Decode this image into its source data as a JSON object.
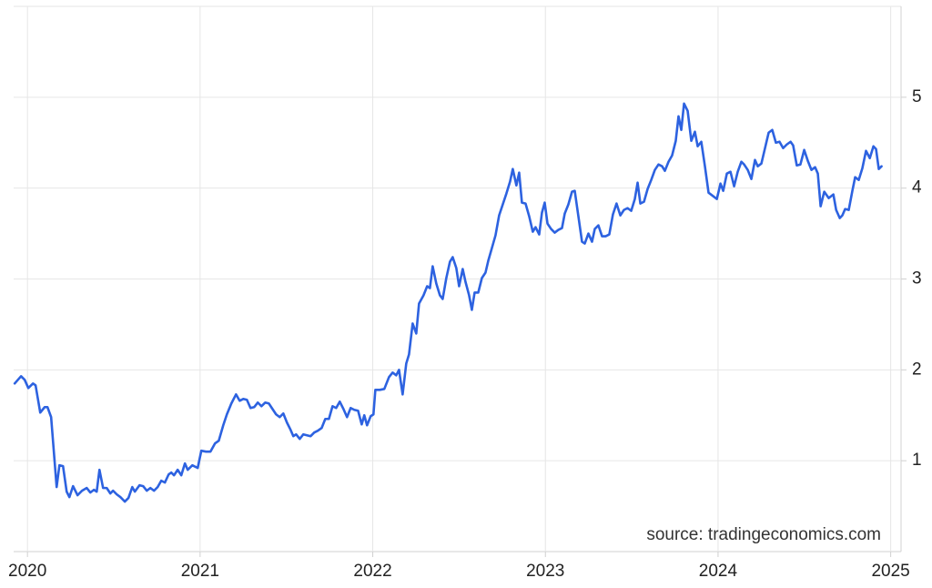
{
  "chart_data": {
    "type": "line",
    "annotation": "source: tradingeconomics.com",
    "color": "#2d62e0",
    "grid": true,
    "xlim": [
      2019.92,
      2025.06
    ],
    "xticks": [
      2020,
      2021,
      2022,
      2023,
      2024,
      2025
    ],
    "ylim": [
      0,
      6
    ],
    "yticks": [
      1,
      2,
      3,
      4,
      5
    ],
    "x": [
      2019.926,
      2019.963,
      2019.984,
      2020.005,
      2020.032,
      2020.047,
      2020.074,
      2020.1,
      2020.116,
      2020.137,
      2020.169,
      2020.185,
      2020.206,
      2020.227,
      2020.243,
      2020.264,
      2020.29,
      2020.316,
      2020.343,
      2020.364,
      2020.385,
      2020.401,
      2020.417,
      2020.438,
      2020.459,
      2020.48,
      2020.496,
      2020.517,
      2020.538,
      2020.564,
      2020.585,
      2020.607,
      2020.622,
      2020.649,
      2020.67,
      2020.691,
      2020.712,
      2020.733,
      2020.754,
      2020.775,
      2020.796,
      2020.818,
      2020.833,
      2020.849,
      2020.87,
      2020.891,
      2020.912,
      2020.928,
      2020.955,
      2020.986,
      2021.007,
      2021.034,
      2021.06,
      2021.086,
      2021.108,
      2021.134,
      2021.155,
      2021.181,
      2021.208,
      2021.229,
      2021.25,
      2021.271,
      2021.292,
      2021.313,
      2021.334,
      2021.355,
      2021.377,
      2021.398,
      2021.419,
      2021.44,
      2021.461,
      2021.482,
      2021.503,
      2021.524,
      2021.54,
      2021.556,
      2021.577,
      2021.598,
      2021.619,
      2021.64,
      2021.661,
      2021.682,
      2021.704,
      2021.725,
      2021.746,
      2021.767,
      2021.788,
      2021.809,
      2021.83,
      2021.851,
      2021.872,
      2021.893,
      2021.915,
      2021.936,
      2021.951,
      2021.967,
      2021.988,
      2022.004,
      2022.015,
      2022.041,
      2022.067,
      2022.094,
      2022.115,
      2022.136,
      2022.152,
      2022.173,
      2022.194,
      2022.21,
      2022.231,
      2022.252,
      2022.268,
      2022.294,
      2022.315,
      2022.331,
      2022.347,
      2022.368,
      2022.389,
      2022.405,
      2022.426,
      2022.447,
      2022.463,
      2022.484,
      2022.5,
      2022.521,
      2022.537,
      2022.558,
      2022.574,
      2022.59,
      2022.611,
      2022.632,
      2022.653,
      2022.669,
      2022.69,
      2022.711,
      2022.732,
      2022.753,
      2022.774,
      2022.795,
      2022.811,
      2022.832,
      2022.848,
      2022.864,
      2022.885,
      2022.906,
      2022.927,
      2022.943,
      2022.964,
      2022.98,
      2022.996,
      2023.012,
      2023.033,
      2023.054,
      2023.075,
      2023.096,
      2023.112,
      2023.133,
      2023.154,
      2023.17,
      2023.191,
      2023.212,
      2023.228,
      2023.249,
      2023.27,
      2023.286,
      2023.307,
      2023.328,
      2023.349,
      2023.37,
      2023.391,
      2023.412,
      2023.434,
      2023.455,
      2023.476,
      2023.497,
      2023.518,
      2023.534,
      2023.55,
      2023.571,
      2023.592,
      2023.613,
      2023.634,
      2023.655,
      2023.676,
      2023.692,
      2023.713,
      2023.734,
      2023.755,
      2023.771,
      2023.787,
      2023.803,
      2023.824,
      2023.845,
      2023.866,
      2023.882,
      2023.903,
      2023.924,
      2023.945,
      2023.966,
      2023.993,
      2024.014,
      2024.03,
      2024.051,
      2024.072,
      2024.093,
      2024.114,
      2024.135,
      2024.151,
      2024.172,
      2024.193,
      2024.214,
      2024.23,
      2024.251,
      2024.272,
      2024.293,
      2024.314,
      2024.335,
      2024.356,
      2024.377,
      2024.398,
      2024.42,
      2024.435,
      2024.456,
      2024.477,
      2024.499,
      2024.52,
      2024.541,
      2024.562,
      2024.578,
      2024.594,
      2024.615,
      2024.641,
      2024.668,
      2024.684,
      2024.705,
      2024.72,
      2024.736,
      2024.757,
      2024.778,
      2024.794,
      2024.815,
      2024.836,
      2024.857,
      2024.879,
      2024.9,
      2024.915,
      2024.931,
      2024.947
    ],
    "values": [
      1.85,
      1.93,
      1.89,
      1.8,
      1.85,
      1.83,
      1.53,
      1.59,
      1.59,
      1.48,
      0.71,
      0.95,
      0.94,
      0.66,
      0.6,
      0.72,
      0.62,
      0.67,
      0.7,
      0.65,
      0.68,
      0.66,
      0.9,
      0.7,
      0.7,
      0.64,
      0.67,
      0.63,
      0.6,
      0.55,
      0.59,
      0.71,
      0.66,
      0.73,
      0.72,
      0.67,
      0.7,
      0.67,
      0.71,
      0.78,
      0.76,
      0.85,
      0.87,
      0.84,
      0.9,
      0.84,
      0.97,
      0.9,
      0.95,
      0.92,
      1.11,
      1.1,
      1.1,
      1.19,
      1.22,
      1.39,
      1.51,
      1.63,
      1.73,
      1.66,
      1.68,
      1.67,
      1.58,
      1.59,
      1.64,
      1.6,
      1.64,
      1.63,
      1.57,
      1.51,
      1.48,
      1.52,
      1.42,
      1.34,
      1.27,
      1.29,
      1.24,
      1.29,
      1.28,
      1.27,
      1.31,
      1.33,
      1.36,
      1.46,
      1.46,
      1.6,
      1.58,
      1.65,
      1.57,
      1.48,
      1.58,
      1.56,
      1.55,
      1.4,
      1.5,
      1.39,
      1.49,
      1.51,
      1.78,
      1.78,
      1.79,
      1.92,
      1.97,
      1.94,
      2.0,
      1.73,
      2.07,
      2.17,
      2.51,
      2.4,
      2.73,
      2.82,
      2.92,
      2.9,
      3.14,
      2.95,
      2.82,
      2.78,
      3.01,
      3.19,
      3.24,
      3.12,
      2.92,
      3.11,
      2.97,
      2.82,
      2.66,
      2.85,
      2.85,
      3.01,
      3.07,
      3.2,
      3.34,
      3.48,
      3.7,
      3.82,
      3.94,
      4.07,
      4.21,
      4.03,
      4.17,
      3.84,
      3.83,
      3.69,
      3.52,
      3.57,
      3.49,
      3.73,
      3.84,
      3.61,
      3.55,
      3.51,
      3.54,
      3.56,
      3.72,
      3.82,
      3.96,
      3.97,
      3.69,
      3.41,
      3.39,
      3.5,
      3.41,
      3.55,
      3.59,
      3.47,
      3.47,
      3.49,
      3.71,
      3.83,
      3.7,
      3.76,
      3.78,
      3.75,
      3.88,
      4.06,
      3.83,
      3.85,
      3.99,
      4.09,
      4.2,
      4.26,
      4.24,
      4.19,
      4.29,
      4.36,
      4.52,
      4.79,
      4.64,
      4.93,
      4.85,
      4.52,
      4.62,
      4.46,
      4.51,
      4.24,
      3.95,
      3.92,
      3.88,
      4.05,
      3.97,
      4.16,
      4.18,
      4.02,
      4.18,
      4.29,
      4.26,
      4.2,
      4.1,
      4.31,
      4.24,
      4.27,
      4.44,
      4.61,
      4.64,
      4.5,
      4.51,
      4.44,
      4.48,
      4.51,
      4.47,
      4.25,
      4.26,
      4.42,
      4.3,
      4.2,
      4.23,
      4.16,
      3.8,
      3.96,
      3.89,
      3.93,
      3.76,
      3.67,
      3.7,
      3.77,
      3.76,
      3.97,
      4.12,
      4.09,
      4.22,
      4.41,
      4.33,
      4.46,
      4.43,
      4.21,
      4.24
    ]
  }
}
